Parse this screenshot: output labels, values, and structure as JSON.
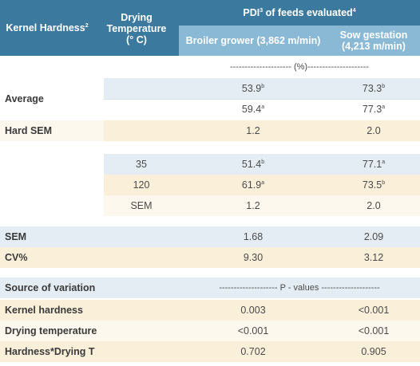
{
  "header": {
    "col1": "Kernel Hardness",
    "col1_sup": "2",
    "col2_line1": "Drying",
    "col2_line2": "Temperature",
    "col2_line3": "(° C)",
    "group_prefix": "PDI",
    "group_sup1": "3",
    "group_mid": " of feeds evaluated",
    "group_sup2": "4",
    "sub1": "Broiler grower (3,862 m/min)",
    "sub2_line1": "Sow gestation",
    "sub2_line2": "(4,213 m/min)"
  },
  "units_row": "--------------------- (%)---------------------",
  "average": {
    "label": "Average",
    "r1": {
      "v1": "53.9",
      "s1": "b",
      "v2": "73.3",
      "s2": "b"
    },
    "r2": {
      "v1": "59.4",
      "s1": "a",
      "v2": "77.3",
      "s2": "a"
    }
  },
  "hard_sem": {
    "label": "Hard SEM",
    "v1": "1.2",
    "v2": "2.0"
  },
  "temps": [
    {
      "temp": "35",
      "v1": "51.4",
      "s1": "b",
      "v2": "77.1",
      "s2": "a"
    },
    {
      "temp": "120",
      "v1": "61.9",
      "s1": "a",
      "v2": "73.5",
      "s2": "b"
    },
    {
      "temp": "SEM",
      "v1": "1.2",
      "s1": "",
      "v2": "2.0",
      "s2": ""
    }
  ],
  "sem": {
    "label": "SEM",
    "v1": "1.68",
    "v2": "2.09"
  },
  "cv": {
    "label": "CV%",
    "v1": "9.30",
    "v2": "3.12"
  },
  "source": {
    "label": "Source of variation",
    "pvalues": "-------------------- P - values --------------------"
  },
  "effects": [
    {
      "label": "Kernel hardness",
      "v1": "0.003",
      "v2": "<0.001"
    },
    {
      "label": "Drying temperature",
      "v1": "<0.001",
      "v2": "<0.001"
    },
    {
      "label": "Hardness*Drying T",
      "v1": "0.702",
      "v2": "0.905"
    }
  ],
  "colors": {
    "header_dark": "#3b7a9e",
    "header_light": "#8ab9d6"
  }
}
